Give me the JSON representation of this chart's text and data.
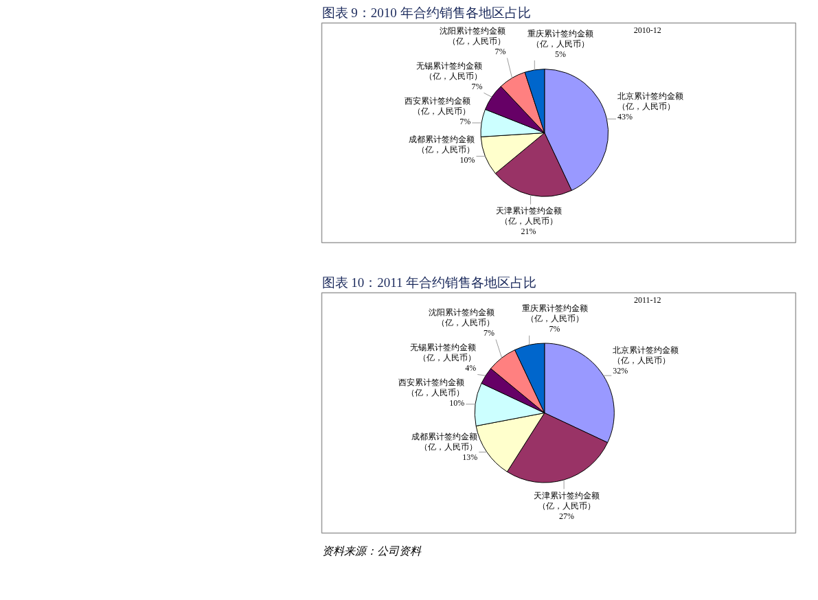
{
  "chart_data": [
    {
      "type": "pie",
      "title": "图表 9：2010 年合约销售各地区占比",
      "subtitle": "2010-12",
      "categories": [
        "北京累计签约金额（亿，人民币）",
        "天津累计签约金额（亿，人民币）",
        "成都累计签约金额（亿，人民币）",
        "西安累计签约金额（亿，人民币）",
        "无锡累计签约金额（亿，人民币）",
        "沈阳累计签约金额（亿，人民币）",
        "重庆累计签约金额（亿，人民币）"
      ],
      "values": [
        43,
        21,
        10,
        7,
        7,
        7,
        5
      ],
      "value_labels": [
        "43%",
        "21%",
        "10%",
        "7%",
        "7%",
        "7%",
        "5%"
      ],
      "colors": [
        "#9999ff",
        "#993366",
        "#ffffcc",
        "#ccffff",
        "#660066",
        "#ff8080",
        "#0066cc"
      ]
    },
    {
      "type": "pie",
      "title": "图表 10：2011 年合约销售各地区占比",
      "subtitle": "2011-12",
      "categories": [
        "北京累计签约金额（亿，人民币）",
        "天津累计签约金额（亿，人民币）",
        "成都累计签约金额（亿，人民币）",
        "西安累计签约金额（亿，人民币）",
        "无锡累计签约金额（亿，人民币）",
        "沈阳累计签约金额（亿，人民币）",
        "重庆累计签约金额（亿，人民币）"
      ],
      "values": [
        32,
        27,
        13,
        10,
        4,
        7,
        7
      ],
      "value_labels": [
        "32%",
        "27%",
        "13%",
        "10%",
        "4%",
        "7%",
        "7%"
      ],
      "colors": [
        "#9999ff",
        "#993366",
        "#ffffcc",
        "#ccffff",
        "#660066",
        "#ff8080",
        "#0066cc"
      ],
      "annotations": [
        "资料来源：公司资料"
      ]
    }
  ]
}
